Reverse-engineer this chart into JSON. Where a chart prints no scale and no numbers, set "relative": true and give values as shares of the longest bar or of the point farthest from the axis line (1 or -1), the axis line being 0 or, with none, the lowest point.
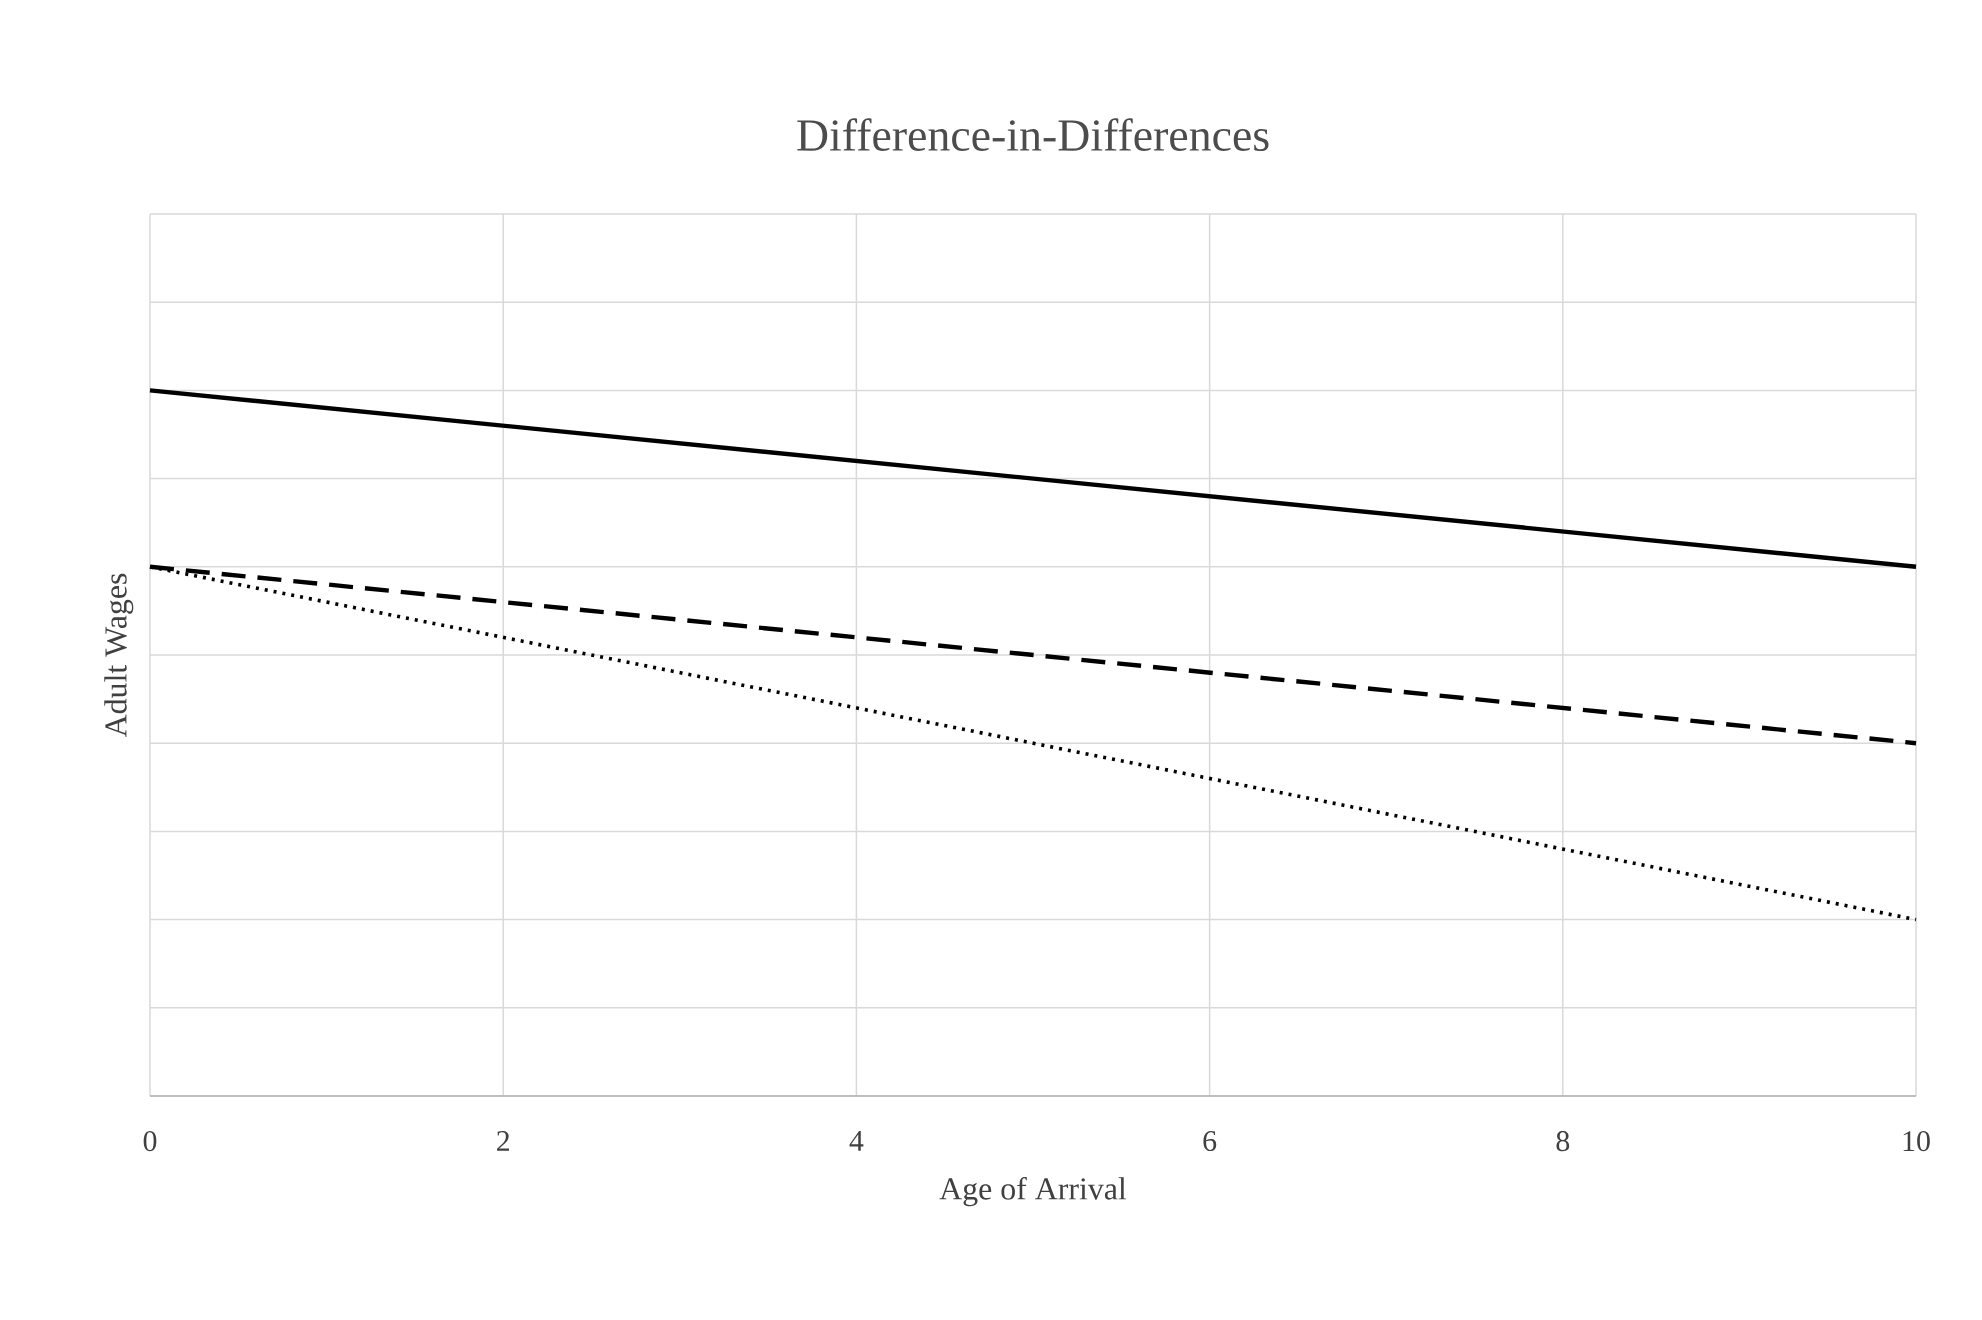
{
  "chart_data": {
    "type": "line",
    "title": "Difference-in-Differences",
    "xlabel": "Age of Arrival",
    "ylabel": "Adult Wages",
    "relative": true,
    "x": [
      0,
      10
    ],
    "xlim": [
      0,
      10
    ],
    "xticks": [
      0,
      2,
      4,
      6,
      8,
      10
    ],
    "grid": true,
    "tick_labels": "x",
    "marker": "none",
    "series": [
      {
        "color": "#000000",
        "line_style": "solid",
        "values": [
          1,
          0.75
        ]
      },
      {
        "color": "#000000",
        "line_style": "dashed",
        "values": [
          0.75,
          0.5
        ]
      },
      {
        "color": "#000000",
        "line_style": "dotted",
        "values": [
          0.75,
          0.25
        ]
      }
    ]
  }
}
